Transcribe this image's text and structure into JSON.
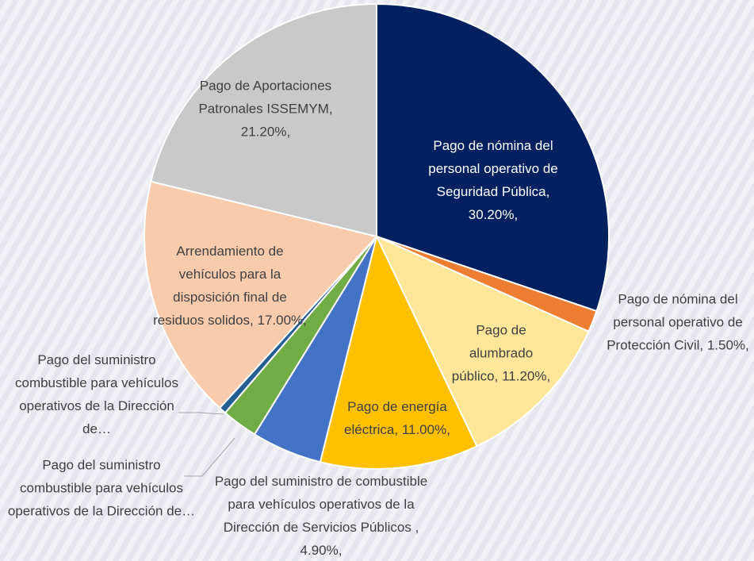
{
  "chart_data": {
    "type": "pie",
    "categories": [
      "Pago de nómina del personal operativo de Seguridad Pública,",
      "Pago de nómina del personal operativo de Protección Civil,",
      "Pago de alumbrado público,",
      "Pago de energía eléctrica,",
      "Pago del suministro de combustible para vehículos operativos de la Dirección de Servicios Públicos ,",
      "Pago del suministro combustible para vehículos operativos de la Dirección de…",
      "Pago del suministro combustible para vehículos operativos de la Dirección de…",
      "Arrendamiento de vehículos para la disposición final de residuos solidos,",
      "Pago de Aportaciones Patronales ISSEMYM,"
    ],
    "values": [
      30.2,
      1.5,
      11.2,
      11.0,
      4.9,
      2.5,
      0.5,
      17.0,
      21.2
    ],
    "value_labels": [
      "30.20%,",
      "1.50%,",
      "11.20%,",
      "11.00%,",
      "4.90%,",
      null,
      null,
      "17.00%,",
      "21.20%,"
    ],
    "colors": [
      "#002060",
      "#ed7d31",
      "#ffe699",
      "#ffc000",
      "#4472c4",
      "#70ad47",
      "#255e91",
      "#f8cbad",
      "#c9c9c9"
    ]
  }
}
